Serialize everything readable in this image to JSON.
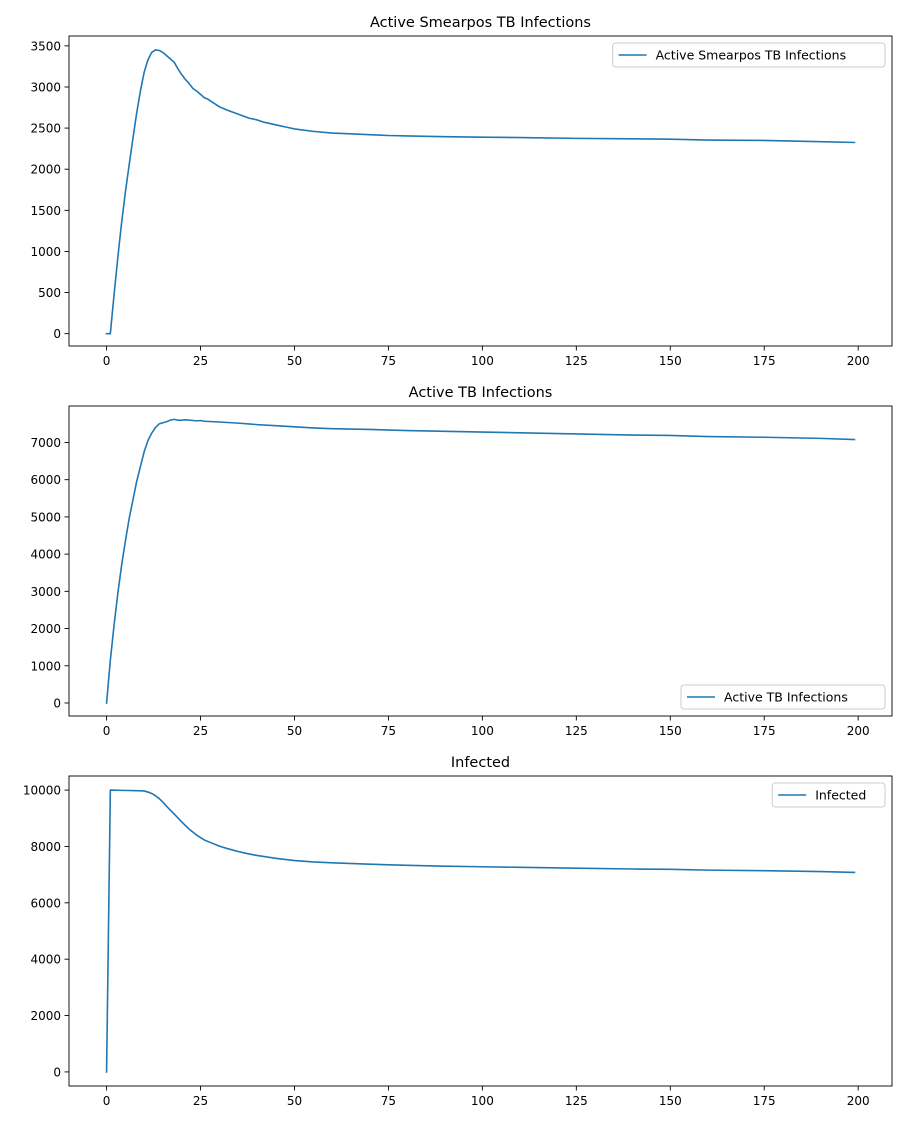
{
  "figure": {
    "background": "#ffffff",
    "line_color": "#1f77b4"
  },
  "chart_data": [
    {
      "type": "line",
      "title": "Active Smearpos TB Infections",
      "xlabel": "",
      "ylabel": "",
      "xlim": [
        -10,
        209
      ],
      "ylim": [
        -150,
        3620
      ],
      "xticks": [
        0,
        25,
        50,
        75,
        100,
        125,
        150,
        175,
        200
      ],
      "yticks": [
        0,
        500,
        1000,
        1500,
        2000,
        2500,
        3000,
        3500
      ],
      "grid": false,
      "legend_position": "upper right",
      "series": [
        {
          "name": "Active Smearpos TB Infections",
          "x": [
            0,
            1,
            2,
            3,
            4,
            5,
            6,
            7,
            8,
            9,
            10,
            11,
            12,
            13,
            14,
            15,
            16,
            17,
            18,
            19,
            20,
            21,
            22,
            23,
            24,
            25,
            26,
            27,
            28,
            30,
            32,
            35,
            38,
            40,
            42,
            45,
            48,
            50,
            55,
            60,
            65,
            70,
            75,
            80,
            90,
            100,
            110,
            125,
            140,
            150,
            160,
            175,
            190,
            199
          ],
          "y": [
            0,
            0,
            480,
            930,
            1350,
            1720,
            2050,
            2370,
            2680,
            2950,
            3180,
            3330,
            3420,
            3450,
            3445,
            3420,
            3380,
            3340,
            3300,
            3220,
            3150,
            3090,
            3040,
            2980,
            2950,
            2910,
            2870,
            2850,
            2820,
            2760,
            2720,
            2670,
            2620,
            2600,
            2570,
            2540,
            2510,
            2490,
            2460,
            2440,
            2430,
            2420,
            2410,
            2405,
            2395,
            2390,
            2385,
            2375,
            2370,
            2365,
            2355,
            2350,
            2335,
            2325
          ]
        }
      ]
    },
    {
      "type": "line",
      "title": "Active TB Infections",
      "xlabel": "",
      "ylabel": "",
      "xlim": [
        -10,
        209
      ],
      "ylim": [
        -350,
        7980
      ],
      "xticks": [
        0,
        25,
        50,
        75,
        100,
        125,
        150,
        175,
        200
      ],
      "yticks": [
        0,
        1000,
        2000,
        3000,
        4000,
        5000,
        6000,
        7000
      ],
      "grid": false,
      "legend_position": "lower right",
      "series": [
        {
          "name": "Active TB Infections",
          "x": [
            0,
            1,
            2,
            3,
            4,
            5,
            6,
            7,
            8,
            9,
            10,
            11,
            12,
            13,
            14,
            15,
            16,
            17,
            18,
            19,
            20,
            21,
            22,
            23,
            24,
            25,
            26,
            28,
            30,
            35,
            40,
            45,
            50,
            55,
            60,
            70,
            80,
            90,
            100,
            110,
            125,
            140,
            150,
            160,
            175,
            190,
            199
          ],
          "y": [
            0,
            1150,
            2100,
            2950,
            3700,
            4350,
            4950,
            5450,
            5950,
            6350,
            6750,
            7050,
            7250,
            7400,
            7500,
            7530,
            7560,
            7600,
            7620,
            7600,
            7600,
            7610,
            7600,
            7590,
            7580,
            7590,
            7570,
            7560,
            7550,
            7520,
            7480,
            7450,
            7420,
            7390,
            7370,
            7350,
            7320,
            7300,
            7280,
            7260,
            7230,
            7200,
            7190,
            7160,
            7140,
            7110,
            7080
          ]
        }
      ]
    },
    {
      "type": "line",
      "title": "Infected",
      "xlabel": "",
      "ylabel": "",
      "xlim": [
        -10,
        209
      ],
      "ylim": [
        -500,
        10500
      ],
      "xticks": [
        0,
        25,
        50,
        75,
        100,
        125,
        150,
        175,
        200
      ],
      "yticks": [
        0,
        2000,
        4000,
        6000,
        8000,
        10000
      ],
      "grid": false,
      "legend_position": "upper right",
      "series": [
        {
          "name": "Infected",
          "x": [
            0,
            1,
            2,
            4,
            6,
            8,
            10,
            11,
            12,
            13,
            14,
            15,
            16,
            18,
            20,
            22,
            24,
            26,
            28,
            30,
            32,
            35,
            38,
            40,
            45,
            50,
            55,
            60,
            70,
            80,
            90,
            100,
            110,
            125,
            140,
            150,
            160,
            175,
            190,
            199
          ],
          "y": [
            0,
            10000,
            9995,
            9990,
            9985,
            9980,
            9970,
            9930,
            9880,
            9800,
            9700,
            9570,
            9420,
            9150,
            8870,
            8610,
            8400,
            8230,
            8120,
            8010,
            7930,
            7820,
            7730,
            7680,
            7580,
            7500,
            7450,
            7420,
            7370,
            7330,
            7300,
            7280,
            7260,
            7230,
            7200,
            7190,
            7160,
            7140,
            7110,
            7080
          ]
        }
      ]
    }
  ]
}
